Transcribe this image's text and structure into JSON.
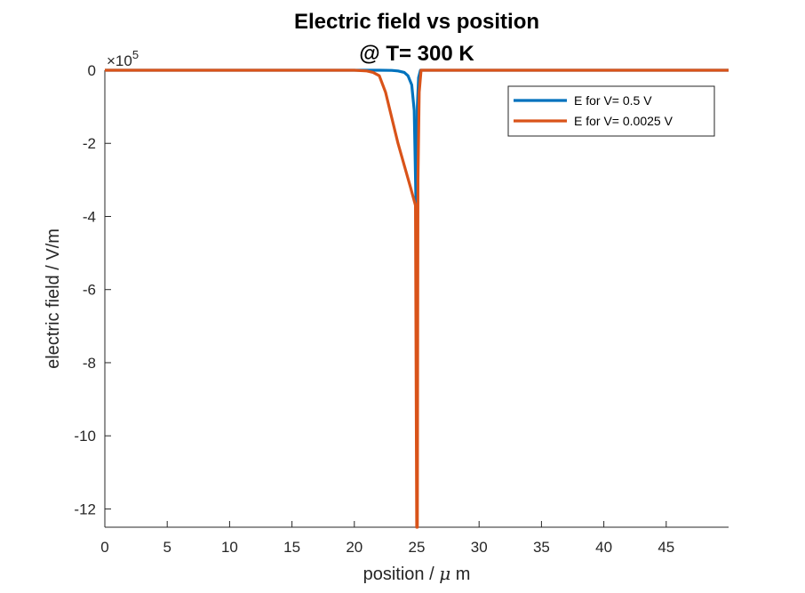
{
  "chart_data": {
    "type": "line",
    "title": [
      "Electric field vs position",
      "@ T= 300 K"
    ],
    "xlabel_text": "position / ",
    "xlabel_mu": "μ",
    "xlabel_unit": " m",
    "ylabel": "electric field / V/m",
    "y_exponent_base": "×10",
    "y_exponent_power": "5",
    "xlim": [
      0,
      50
    ],
    "ylim": [
      -1250000,
      0
    ],
    "xticks": [
      0,
      5,
      10,
      15,
      20,
      25,
      30,
      35,
      40,
      45
    ],
    "xtick_labels": [
      "0",
      "5",
      "10",
      "15",
      "20",
      "25",
      "30",
      "35",
      "40",
      "45"
    ],
    "yticks": [
      0,
      -200000,
      -400000,
      -600000,
      -800000,
      -1000000,
      -1200000
    ],
    "ytick_labels": [
      "0",
      "-2",
      "-4",
      "-6",
      "-8",
      "-10",
      "-12"
    ],
    "grid": false,
    "legend_position": "top-right",
    "series": [
      {
        "name": "E for V= 0.5 V",
        "color": "#0072BD",
        "x": [
          0,
          20,
          22,
          23,
          23.5,
          24,
          24.3,
          24.6,
          24.8,
          24.95,
          25.0,
          25.05,
          25.15,
          25.3,
          26,
          30,
          40,
          50
        ],
        "y": [
          0,
          0,
          0,
          -500,
          -2000,
          -6000,
          -15000,
          -40000,
          -110000,
          -380000,
          -380000,
          -100000,
          -20000,
          0,
          0,
          0,
          0,
          0
        ]
      },
      {
        "name": "E for V= 0.0025 V",
        "color": "#D95319",
        "x": [
          0,
          20,
          21,
          21.5,
          22,
          22.5,
          23,
          23.5,
          24,
          24.5,
          24.9,
          25.0,
          25.05,
          25.1,
          25.2,
          25.35,
          26,
          30,
          40,
          50
        ],
        "y": [
          0,
          0,
          -2000,
          -6000,
          -15000,
          -60000,
          -130000,
          -200000,
          -260000,
          -320000,
          -370000,
          -1250000,
          -1250000,
          -300000,
          -60000,
          0,
          0,
          0,
          0,
          0
        ]
      }
    ]
  }
}
